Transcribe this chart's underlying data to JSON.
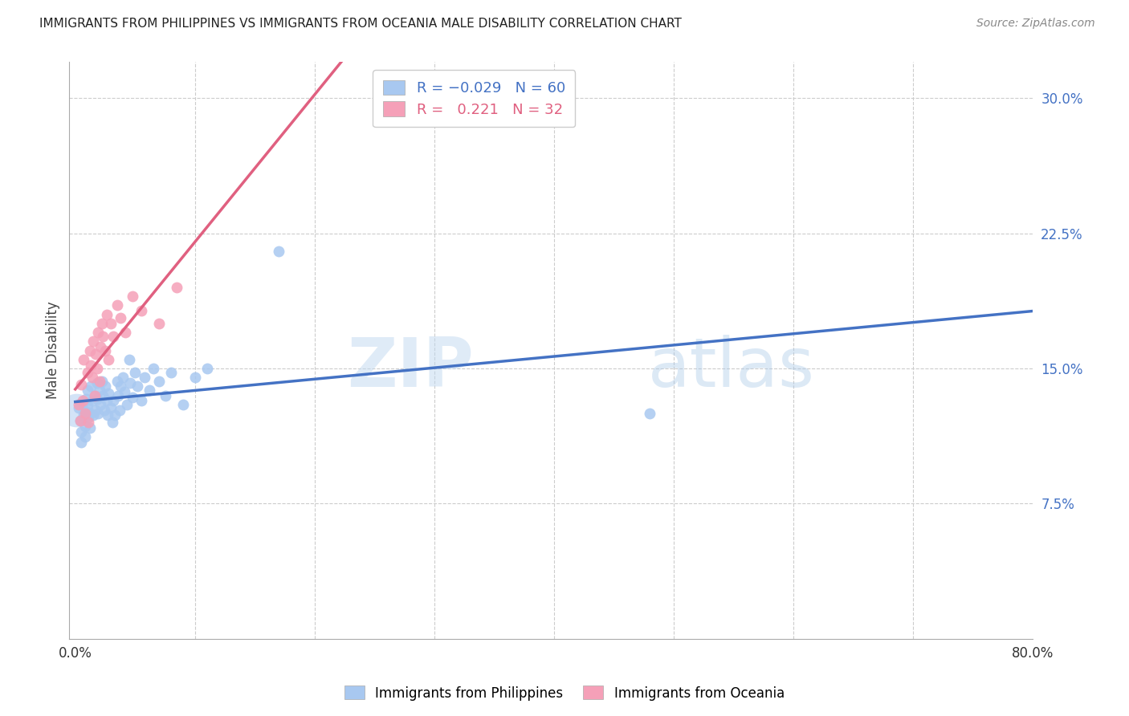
{
  "title": "IMMIGRANTS FROM PHILIPPINES VS IMMIGRANTS FROM OCEANIA MALE DISABILITY CORRELATION CHART",
  "source": "Source: ZipAtlas.com",
  "xlabel_ticks": [
    "0.0%",
    "",
    "",
    "",
    "",
    "",
    "",
    "",
    "80.0%"
  ],
  "xlabel_vals": [
    0.0,
    0.1,
    0.2,
    0.3,
    0.4,
    0.5,
    0.6,
    0.7,
    0.8
  ],
  "ylabel": "Male Disability",
  "ylabel_right_ticks": [
    "30.0%",
    "22.5%",
    "15.0%",
    "7.5%"
  ],
  "ylabel_right_vals": [
    0.3,
    0.225,
    0.15,
    0.075
  ],
  "xlim": [
    -0.005,
    0.8
  ],
  "ylim": [
    0.0,
    0.32
  ],
  "blue_color": "#A8C8F0",
  "pink_color": "#F5A0B8",
  "blue_line_color": "#4472C4",
  "pink_line_color": "#E06080",
  "grid_color": "#CCCCCC",
  "bg_color": "#FFFFFF",
  "watermark_zip": "ZIP",
  "watermark_atlas": "atlas",
  "legend_label_blue": "Immigrants from Philippines",
  "legend_label_pink": "Immigrants from Oceania",
  "R_blue": -0.029,
  "N_blue": 60,
  "R_pink": 0.221,
  "N_pink": 32,
  "blue_x": [
    0.003,
    0.004,
    0.005,
    0.005,
    0.006,
    0.007,
    0.008,
    0.008,
    0.009,
    0.009,
    0.01,
    0.01,
    0.011,
    0.012,
    0.012,
    0.013,
    0.014,
    0.015,
    0.016,
    0.017,
    0.018,
    0.018,
    0.019,
    0.02,
    0.021,
    0.022,
    0.023,
    0.024,
    0.025,
    0.026,
    0.027,
    0.028,
    0.03,
    0.031,
    0.032,
    0.033,
    0.035,
    0.036,
    0.037,
    0.038,
    0.04,
    0.041,
    0.043,
    0.045,
    0.046,
    0.048,
    0.05,
    0.052,
    0.055,
    0.058,
    0.062,
    0.065,
    0.07,
    0.075,
    0.08,
    0.09,
    0.1,
    0.11,
    0.17,
    0.48
  ],
  "blue_y": [
    0.128,
    0.121,
    0.115,
    0.109,
    0.131,
    0.124,
    0.118,
    0.112,
    0.133,
    0.126,
    0.138,
    0.13,
    0.123,
    0.125,
    0.117,
    0.14,
    0.132,
    0.124,
    0.135,
    0.127,
    0.142,
    0.133,
    0.125,
    0.138,
    0.13,
    0.143,
    0.135,
    0.127,
    0.14,
    0.132,
    0.124,
    0.136,
    0.128,
    0.12,
    0.132,
    0.124,
    0.143,
    0.135,
    0.127,
    0.14,
    0.145,
    0.137,
    0.13,
    0.155,
    0.142,
    0.134,
    0.148,
    0.14,
    0.132,
    0.145,
    0.138,
    0.15,
    0.143,
    0.135,
    0.148,
    0.13,
    0.145,
    0.15,
    0.215,
    0.125
  ],
  "pink_x": [
    0.003,
    0.004,
    0.005,
    0.006,
    0.007,
    0.008,
    0.01,
    0.011,
    0.012,
    0.013,
    0.014,
    0.015,
    0.016,
    0.017,
    0.018,
    0.019,
    0.02,
    0.021,
    0.022,
    0.023,
    0.025,
    0.026,
    0.028,
    0.03,
    0.032,
    0.035,
    0.038,
    0.042,
    0.048,
    0.055,
    0.07,
    0.085
  ],
  "pink_y": [
    0.13,
    0.121,
    0.141,
    0.132,
    0.155,
    0.125,
    0.148,
    0.12,
    0.16,
    0.152,
    0.145,
    0.165,
    0.135,
    0.158,
    0.15,
    0.17,
    0.143,
    0.162,
    0.175,
    0.168,
    0.16,
    0.18,
    0.155,
    0.175,
    0.168,
    0.185,
    0.178,
    0.17,
    0.19,
    0.182,
    0.175,
    0.195
  ]
}
